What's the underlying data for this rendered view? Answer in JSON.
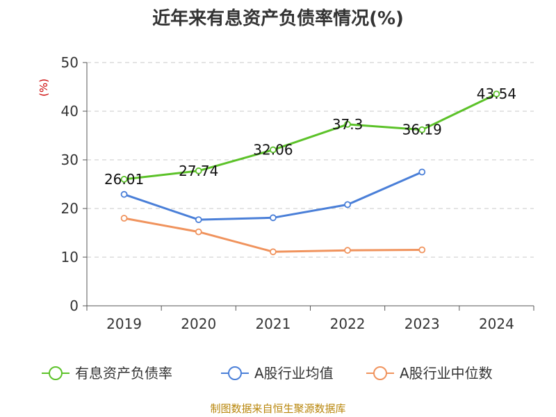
{
  "chart_data": {
    "type": "line",
    "title": "近年来有息资产负债率情况(%)",
    "ylabel": "(%)",
    "xlabel": "",
    "categories": [
      "2019",
      "2020",
      "2021",
      "2022",
      "2023",
      "2024"
    ],
    "ylim": [
      0,
      50
    ],
    "yticks": [
      0,
      10,
      20,
      30,
      40,
      50
    ],
    "grid": true,
    "legend_position": "bottom",
    "series": [
      {
        "name": "有息资产负债率",
        "color": "#5cc229",
        "values": [
          26.01,
          27.74,
          32.06,
          37.3,
          36.19,
          43.54
        ],
        "labels": [
          "26.01",
          "27.74",
          "32.06",
          "37.3",
          "36.19",
          "43.54"
        ]
      },
      {
        "name": "A股行业均值",
        "color": "#4a7fd8",
        "values": [
          22.9,
          17.7,
          18.1,
          20.8,
          27.5,
          null
        ],
        "labels": []
      },
      {
        "name": "A股行业中位数",
        "color": "#f0935d",
        "values": [
          18.0,
          15.2,
          11.1,
          11.4,
          11.5,
          null
        ],
        "labels": []
      }
    ],
    "source": "制图数据来自恒生聚源数据库"
  }
}
